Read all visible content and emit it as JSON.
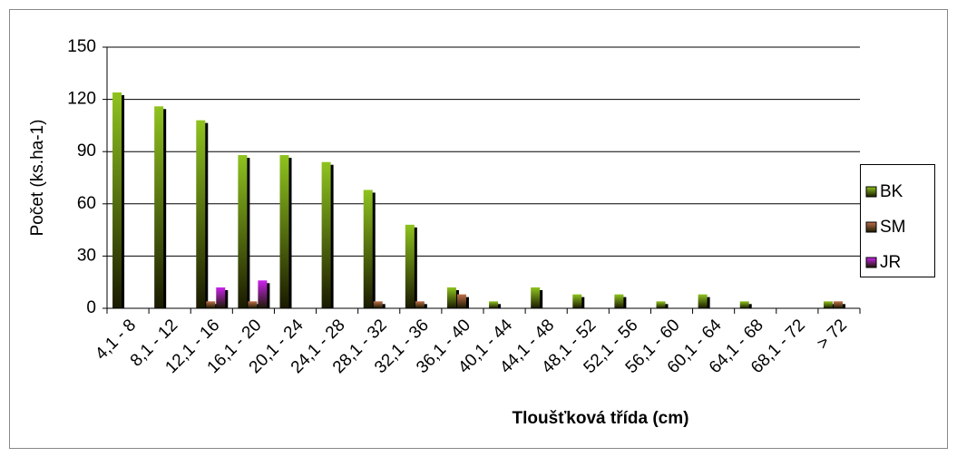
{
  "chart_data": {
    "type": "bar",
    "x_label": "Tloušťková třída (cm)",
    "y_label": "Počet (ks.ha-1)",
    "categories": [
      "4,1 - 8",
      "8,1 - 12",
      "12,1 - 16",
      "16,1 - 20",
      "20,1 - 24",
      "24,1 - 28",
      "28,1 - 32",
      "32,1 - 36",
      "36,1 - 40",
      "40,1 - 44",
      "44,1 - 48",
      "48,1 - 52",
      "52,1 - 56",
      "56,1 - 60",
      "60,1 - 64",
      "64,1 - 68",
      "68,1 - 72",
      "> 72"
    ],
    "series": [
      {
        "name": "BK",
        "color": "#8fc31f",
        "values": [
          124,
          116,
          108,
          88,
          88,
          84,
          68,
          48,
          12,
          4,
          12,
          8,
          8,
          4,
          8,
          4,
          0,
          4
        ]
      },
      {
        "name": "SM",
        "color": "#c0704a",
        "values": [
          0,
          0,
          4,
          4,
          0,
          0,
          4,
          4,
          8,
          0,
          0,
          0,
          0,
          0,
          0,
          0,
          0,
          4
        ]
      },
      {
        "name": "JR",
        "color": "#cc22ee",
        "values": [
          0,
          0,
          12,
          16,
          0,
          0,
          0,
          0,
          0,
          0,
          0,
          0,
          0,
          0,
          0,
          0,
          0,
          0
        ]
      }
    ],
    "ylim": [
      0,
      150
    ],
    "yticks": [
      0,
      30,
      60,
      90,
      120,
      150
    ],
    "grid": true,
    "legend": "right"
  }
}
